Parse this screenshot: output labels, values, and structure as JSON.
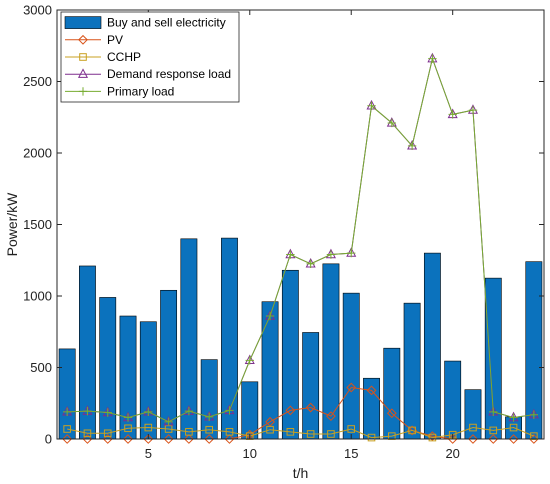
{
  "chart_data": {
    "type": "bar",
    "xlabel": "t/h",
    "ylabel": "Power/kW",
    "xlim": [
      0.5,
      24.5
    ],
    "ylim": [
      0,
      3000
    ],
    "xticks": [
      5,
      10,
      15,
      20
    ],
    "yticks": [
      0,
      500,
      1000,
      1500,
      2000,
      2500,
      3000
    ],
    "legend_position": "top-left",
    "x": [
      1,
      2,
      3,
      4,
      5,
      6,
      7,
      8,
      9,
      10,
      11,
      12,
      13,
      14,
      15,
      16,
      17,
      18,
      19,
      20,
      21,
      22,
      23,
      24
    ],
    "series": [
      {
        "name": "Buy and sell electricity",
        "kind": "bar",
        "color": "#0b72bd",
        "values": [
          630,
          1210,
          990,
          860,
          820,
          1040,
          1400,
          555,
          1405,
          400,
          960,
          1180,
          745,
          1225,
          1020,
          425,
          635,
          950,
          1300,
          545,
          345,
          1125,
          155,
          1240
        ]
      },
      {
        "name": "PV",
        "kind": "line",
        "marker": "diamond",
        "color": "#d95319",
        "values": [
          0,
          0,
          0,
          0,
          0,
          0,
          0,
          0,
          0,
          30,
          120,
          200,
          220,
          160,
          360,
          340,
          180,
          60,
          20,
          0,
          0,
          0,
          0,
          0
        ]
      },
      {
        "name": "CCHP",
        "kind": "line",
        "marker": "square",
        "color": "#c9a020",
        "values": [
          70,
          40,
          40,
          75,
          80,
          70,
          50,
          65,
          50,
          20,
          65,
          50,
          35,
          35,
          70,
          10,
          20,
          60,
          10,
          30,
          80,
          60,
          80,
          20
        ]
      },
      {
        "name": "Demand response load",
        "kind": "line",
        "marker": "triangle",
        "color": "#7e2f8e",
        "values": [
          190,
          195,
          185,
          150,
          190,
          120,
          195,
          155,
          200,
          550,
          860,
          1290,
          1225,
          1290,
          1300,
          2330,
          2210,
          2050,
          2660,
          2270,
          2300,
          190,
          150,
          170
        ]
      },
      {
        "name": "Primary load",
        "kind": "line",
        "marker": "plus",
        "color": "#77ac30",
        "values": [
          190,
          195,
          185,
          150,
          190,
          120,
          195,
          155,
          200,
          550,
          860,
          1290,
          1225,
          1290,
          1300,
          2330,
          2210,
          2050,
          2660,
          2270,
          2300,
          190,
          150,
          170
        ]
      }
    ]
  }
}
